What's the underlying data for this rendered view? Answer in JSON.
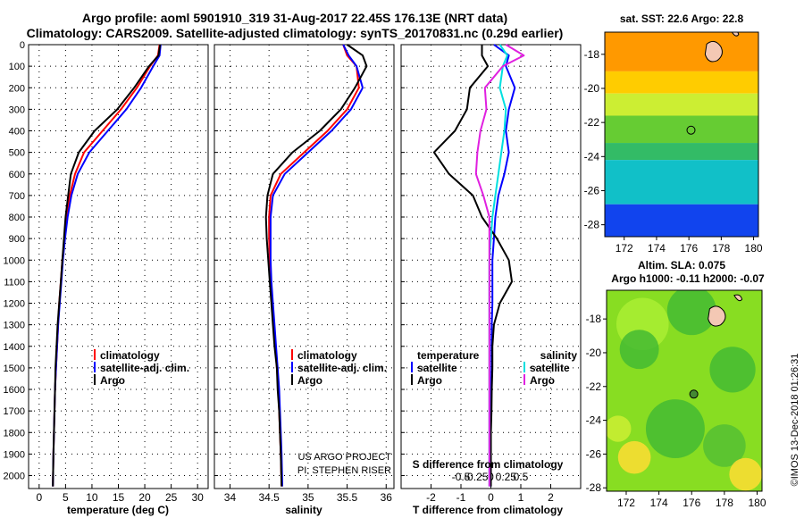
{
  "title_line1": "Argo profile: aoml 5901910_319 31-Aug-2017 22.45S 176.13E (NRT data)",
  "title_line2": "Climatology: CARS2009. Satellite-adjusted climatology: synTS_20170831.nc (0.29d earlier)",
  "colors": {
    "climatology": "#ff0000",
    "satellite": "#0000ff",
    "argo": "#000000",
    "sat_sal": "#00e0e0",
    "argo_sal": "#e020e0"
  },
  "credits": {
    "line1": "US ARGO PROJECT",
    "line2": "PI: STEPHEN RISER"
  },
  "watermark": "©IMOS 13-Dec-2018 01:26:31",
  "chart_data": [
    {
      "type": "line",
      "xlabel": "temperature (deg C)",
      "xlim": [
        -2,
        32
      ],
      "xticks": [
        "0",
        "5",
        "10",
        "15",
        "20",
        "25",
        "30"
      ],
      "xtick_values": [
        0,
        5,
        10,
        15,
        20,
        25,
        30
      ],
      "ylim": [
        2060,
        0
      ],
      "yticks": [
        "0",
        "100",
        "200",
        "300",
        "400",
        "500",
        "600",
        "700",
        "800",
        "900",
        "1000",
        "1100",
        "1200",
        "1300",
        "1400",
        "1500",
        "1600",
        "1700",
        "1800",
        "1900",
        "2000"
      ],
      "ytick_values": [
        0,
        100,
        200,
        300,
        400,
        500,
        600,
        700,
        800,
        900,
        1000,
        1100,
        1200,
        1300,
        1400,
        1500,
        1600,
        1700,
        1800,
        1900,
        2000
      ],
      "legend": [
        "climatology",
        "satellite-adj. clim.",
        "Argo"
      ],
      "legend_position": "lower-right",
      "series": [
        {
          "name": "climatology",
          "color": "#ff0000",
          "x": [
            22.8,
            22.5,
            21.0,
            18.5,
            15.5,
            12.0,
            8.5,
            6.8,
            5.8,
            5.2,
            4.8,
            4.4,
            4.1,
            3.8,
            3.6,
            3.4,
            3.2,
            3.0,
            2.9,
            2.8,
            2.7,
            2.6
          ],
          "depth": [
            0,
            50,
            100,
            200,
            300,
            400,
            500,
            600,
            700,
            800,
            900,
            1000,
            1100,
            1200,
            1300,
            1400,
            1500,
            1600,
            1700,
            1800,
            1900,
            2050
          ]
        },
        {
          "name": "satellite-adj. clim.",
          "color": "#0000ff",
          "x": [
            23.0,
            22.8,
            21.6,
            19.3,
            16.5,
            13.0,
            9.5,
            7.3,
            6.1,
            5.4,
            4.9,
            4.5,
            4.2,
            3.9,
            3.6,
            3.4,
            3.2,
            3.0,
            2.9,
            2.8,
            2.7,
            2.6
          ],
          "depth": [
            0,
            50,
            100,
            200,
            300,
            400,
            500,
            600,
            700,
            800,
            900,
            1000,
            1100,
            1200,
            1300,
            1400,
            1500,
            1600,
            1700,
            1800,
            1900,
            2050
          ]
        },
        {
          "name": "Argo",
          "color": "#000000",
          "x": [
            22.9,
            22.6,
            20.8,
            18.0,
            14.8,
            10.5,
            7.5,
            6.0,
            5.5,
            5.0,
            4.7,
            4.4,
            4.1,
            3.8,
            3.5,
            3.3,
            3.1,
            3.0,
            2.9,
            2.8,
            2.7,
            2.6
          ],
          "depth": [
            0,
            50,
            100,
            200,
            300,
            400,
            500,
            600,
            700,
            800,
            900,
            1000,
            1100,
            1200,
            1300,
            1400,
            1500,
            1600,
            1700,
            1800,
            1900,
            2050
          ]
        }
      ]
    },
    {
      "type": "line",
      "xlabel": "salinity",
      "xlim": [
        33.8,
        36.1
      ],
      "xticks": [
        "34",
        "34.5",
        "35",
        "35.5",
        "36"
      ],
      "xtick_values": [
        34,
        34.5,
        35,
        35.5,
        36
      ],
      "ylim": [
        2060,
        0
      ],
      "legend": [
        "climatology",
        "satellite-adj. clim.",
        "Argo"
      ],
      "legend_position": "lower-right",
      "series": [
        {
          "name": "climatology",
          "color": "#ff0000",
          "x": [
            35.45,
            35.5,
            35.62,
            35.65,
            35.5,
            35.25,
            34.95,
            34.65,
            34.52,
            34.5,
            34.5,
            34.51,
            34.52,
            34.54,
            34.56,
            34.58,
            34.6,
            34.62,
            34.63,
            34.64,
            34.65,
            34.66
          ],
          "depth": [
            0,
            50,
            100,
            200,
            300,
            400,
            500,
            600,
            700,
            800,
            900,
            1000,
            1100,
            1200,
            1300,
            1400,
            1500,
            1600,
            1700,
            1800,
            1900,
            2050
          ]
        },
        {
          "name": "satellite-adj. clim.",
          "color": "#0000ff",
          "x": [
            35.45,
            35.52,
            35.62,
            35.7,
            35.55,
            35.3,
            35.0,
            34.7,
            34.55,
            34.52,
            34.52,
            34.52,
            34.53,
            34.55,
            34.57,
            34.59,
            34.61,
            34.63,
            34.64,
            34.65,
            34.66,
            34.67
          ],
          "depth": [
            0,
            50,
            100,
            200,
            300,
            400,
            500,
            600,
            700,
            800,
            900,
            1000,
            1100,
            1200,
            1300,
            1400,
            1500,
            1600,
            1700,
            1800,
            1900,
            2050
          ]
        },
        {
          "name": "Argo",
          "color": "#000000",
          "x": [
            35.5,
            35.7,
            35.75,
            35.6,
            35.42,
            35.15,
            34.8,
            34.55,
            34.48,
            34.46,
            34.47,
            34.49,
            34.51,
            34.53,
            34.55,
            34.57,
            34.6,
            34.61,
            34.63,
            34.64,
            34.65,
            34.66
          ],
          "depth": [
            0,
            50,
            100,
            200,
            300,
            400,
            500,
            600,
            700,
            800,
            900,
            1000,
            1100,
            1200,
            1300,
            1400,
            1500,
            1600,
            1700,
            1800,
            1900,
            2050
          ]
        }
      ]
    },
    {
      "type": "line",
      "xlabel": "T difference from climatology",
      "xlabel_top": "S difference from climatology",
      "xlim": [
        -3,
        3
      ],
      "xticks": [
        "-2",
        "-1",
        "0",
        "1",
        "2"
      ],
      "xtick_values": [
        -2,
        -1,
        0,
        1,
        2
      ],
      "xticks_top": [
        "-0.5",
        "-0.25",
        "0",
        "0.25",
        "0.5"
      ],
      "xtick_top_values": [
        -1,
        -0.5,
        0,
        0.5,
        1
      ],
      "ylim": [
        2060,
        0
      ],
      "legend_left_title": "temperature",
      "legend_left": [
        "satellite",
        "Argo"
      ],
      "legend_right_title": "salinity",
      "legend_right": [
        "satellite",
        "Argo"
      ],
      "series": [
        {
          "name": "satellite",
          "color": "#0000ff",
          "x": [
            0.1,
            0.6,
            0.5,
            0.8,
            0.6,
            0.5,
            0.6,
            0.45,
            0.25,
            0.15,
            0.1,
            0.05,
            0.05,
            0.03,
            0.02,
            0.02,
            0.01,
            0.0,
            0.0,
            0.0,
            0.0
          ],
          "depth": [
            0,
            50,
            100,
            200,
            300,
            400,
            500,
            600,
            700,
            800,
            900,
            1000,
            1200,
            1300,
            1400,
            1500,
            1600,
            1700,
            1800,
            1900,
            2050
          ]
        },
        {
          "name": "Argo",
          "color": "#000000",
          "x": [
            -0.3,
            -0.3,
            -0.1,
            -0.7,
            -0.8,
            -1.2,
            -1.9,
            -1.4,
            -0.6,
            -0.3,
            0.2,
            0.6,
            0.7,
            0.3,
            0.1,
            0.05,
            0.05,
            0.03,
            0.02,
            0.0,
            0.0,
            0.0
          ],
          "depth": [
            0,
            50,
            100,
            200,
            300,
            400,
            500,
            600,
            700,
            800,
            900,
            1000,
            1100,
            1200,
            1300,
            1400,
            1500,
            1600,
            1700,
            1800,
            1900,
            2050
          ]
        },
        {
          "name": "satellite",
          "color": "#00e0e0",
          "x": [
            0.3,
            0.55,
            0.4,
            0.3,
            0.5,
            0.45,
            0.35,
            0.25,
            0.15,
            0.05,
            0.0,
            -0.05,
            -0.05,
            -0.05,
            -0.05,
            -0.05,
            -0.05,
            -0.05,
            -0.05,
            -0.05
          ],
          "depth": [
            0,
            50,
            100,
            200,
            300,
            400,
            500,
            600,
            700,
            800,
            900,
            1000,
            1200,
            1300,
            1400,
            1500,
            1600,
            1700,
            1800,
            2050
          ]
        },
        {
          "name": "Argo",
          "color": "#e020e0",
          "x": [
            0.5,
            1.1,
            0.4,
            -0.2,
            -0.15,
            -0.35,
            -0.45,
            -0.5,
            -0.25,
            -0.05,
            -0.05,
            -0.05,
            -0.05,
            -0.05,
            -0.05,
            -0.05,
            -0.05,
            -0.05,
            -0.05
          ],
          "depth": [
            0,
            50,
            100,
            200,
            300,
            400,
            500,
            600,
            700,
            800,
            900,
            1000,
            1200,
            1300,
            1400,
            1500,
            1600,
            1700,
            2050
          ]
        }
      ]
    },
    {
      "type": "heatmap",
      "title_line": "sat. SST: 22.6 Argo: 22.8",
      "xlim": [
        170.8,
        180.3
      ],
      "ylim": [
        -28.7,
        -16.7
      ],
      "xticks": [
        "172",
        "174",
        "176",
        "178",
        "180"
      ],
      "xtick_values": [
        172,
        174,
        176,
        178,
        180
      ],
      "yticks": [
        "-18",
        "-20",
        "-22",
        "-24",
        "-26",
        "-28"
      ],
      "ytick_values": [
        -18,
        -20,
        -22,
        -24,
        -26,
        -28
      ],
      "bands": [
        {
          "lat_from": -16.7,
          "lat_to": -19.0,
          "color": "#ff9900"
        },
        {
          "lat_from": -19.0,
          "lat_to": -20.3,
          "color": "#ffcc00"
        },
        {
          "lat_from": -20.3,
          "lat_to": -21.6,
          "color": "#ccee33"
        },
        {
          "lat_from": -21.6,
          "lat_to": -23.2,
          "color": "#66cc33"
        },
        {
          "lat_from": -23.2,
          "lat_to": -24.2,
          "color": "#33bb66"
        },
        {
          "lat_from": -24.2,
          "lat_to": -26.8,
          "color": "#11c0c8"
        },
        {
          "lat_from": -26.8,
          "lat_to": -28.7,
          "color": "#1144ee"
        }
      ],
      "float_position": {
        "lon": 176.13,
        "lat": -22.45
      }
    },
    {
      "type": "heatmap",
      "title_line1": "Altim. SLA: 0.075",
      "title_line2": "Argo h1000: -0.11 h2000: -0.07",
      "xlim": [
        170.8,
        180.3
      ],
      "ylim": [
        -28.2,
        -16.3
      ],
      "xticks": [
        "172",
        "174",
        "176",
        "178",
        "180"
      ],
      "xtick_values": [
        172,
        174,
        176,
        178,
        180
      ],
      "yticks": [
        "-18",
        "-20",
        "-22",
        "-24",
        "-26",
        "-28"
      ],
      "ytick_values": [
        -18,
        -20,
        -22,
        -24,
        -26,
        -28
      ],
      "base_color": "#88dd22",
      "blobs": [
        {
          "lon": 173.0,
          "lat": -18.3,
          "r": 1.6,
          "color": "#aaee33"
        },
        {
          "lon": 176.0,
          "lat": -17.5,
          "r": 1.5,
          "color": "#44bb33"
        },
        {
          "lon": 172.8,
          "lat": -19.8,
          "r": 1.2,
          "color": "#44bb33"
        },
        {
          "lon": 175.0,
          "lat": -24.5,
          "r": 1.8,
          "color": "#44bb33"
        },
        {
          "lon": 178.5,
          "lat": -21.0,
          "r": 1.4,
          "color": "#44bb33"
        },
        {
          "lon": 178.0,
          "lat": -25.5,
          "r": 1.3,
          "color": "#55c033"
        },
        {
          "lon": 172.5,
          "lat": -26.2,
          "r": 1.0,
          "color": "#ffdd33"
        },
        {
          "lon": 179.3,
          "lat": -27.2,
          "r": 1.0,
          "color": "#ffdd33"
        },
        {
          "lon": 171.5,
          "lat": -24.5,
          "r": 0.8,
          "color": "#ccee33"
        }
      ],
      "float_position": {
        "lon": 176.13,
        "lat": -22.45
      }
    }
  ]
}
